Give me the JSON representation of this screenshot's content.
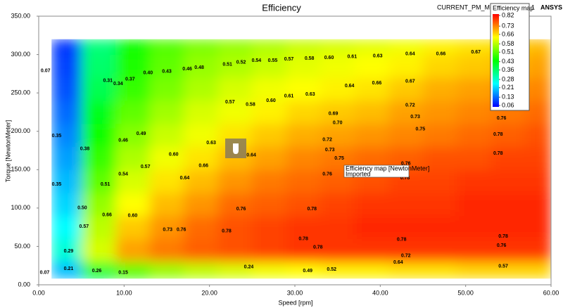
{
  "header": {
    "model": "CURRENT_PM_Moto",
    "index": "1",
    "brand": "ANSYS"
  },
  "tooltip": {
    "title": "Efficiency map [NewtonMeter]",
    "subtitle": "Imported"
  },
  "chart_data": {
    "type": "heatmap",
    "title": "Efficiency",
    "x_label": "Speed [rpm]",
    "y_label": "Torque [NewtonMeter]",
    "xlim": [
      0,
      60
    ],
    "ylim": [
      0,
      350
    ],
    "xticks": [
      {
        "value": 0,
        "label": "0.00"
      },
      {
        "value": 10,
        "label": "10.00"
      },
      {
        "value": 20,
        "label": "20.00"
      },
      {
        "value": 30,
        "label": "30.00"
      },
      {
        "value": 40,
        "label": "40.00"
      },
      {
        "value": 50,
        "label": "50.00"
      },
      {
        "value": 60,
        "label": "60.00"
      }
    ],
    "yticks": [
      {
        "value": 0,
        "label": "0.00"
      },
      {
        "value": 50,
        "label": "50.00"
      },
      {
        "value": 100,
        "label": "100.00"
      },
      {
        "value": 150,
        "label": "150.00"
      },
      {
        "value": 200,
        "label": "200.00"
      },
      {
        "value": 250,
        "label": "250.00"
      },
      {
        "value": 300,
        "label": "300.00"
      },
      {
        "value": 350,
        "label": "350.00"
      }
    ],
    "x_edges": [
      1.5,
      5,
      9,
      13,
      17,
      21,
      25,
      29,
      33,
      37,
      41,
      45,
      49,
      53,
      57,
      60
    ],
    "y_edges": [
      8,
      30,
      60,
      90,
      120,
      150,
      180,
      210,
      240,
      270,
      300,
      320
    ],
    "z": [
      [
        0.2,
        0.4,
        0.5,
        0.55,
        0.58,
        0.6,
        0.62,
        0.63,
        0.64,
        0.64,
        0.65,
        0.65,
        0.66,
        0.66,
        0.66
      ],
      [
        0.28,
        0.6,
        0.7,
        0.73,
        0.75,
        0.76,
        0.77,
        0.78,
        0.78,
        0.78,
        0.78,
        0.78,
        0.78,
        0.78,
        0.78
      ],
      [
        0.25,
        0.58,
        0.67,
        0.71,
        0.74,
        0.76,
        0.77,
        0.78,
        0.78,
        0.79,
        0.79,
        0.79,
        0.79,
        0.79,
        0.79
      ],
      [
        0.22,
        0.55,
        0.63,
        0.68,
        0.71,
        0.74,
        0.75,
        0.76,
        0.77,
        0.78,
        0.78,
        0.78,
        0.79,
        0.79,
        0.79
      ],
      [
        0.2,
        0.51,
        0.6,
        0.65,
        0.68,
        0.71,
        0.73,
        0.74,
        0.75,
        0.76,
        0.77,
        0.77,
        0.78,
        0.78,
        0.78
      ],
      [
        0.18,
        0.48,
        0.57,
        0.62,
        0.65,
        0.68,
        0.7,
        0.72,
        0.73,
        0.74,
        0.75,
        0.76,
        0.76,
        0.77,
        0.77
      ],
      [
        0.16,
        0.45,
        0.54,
        0.59,
        0.62,
        0.65,
        0.67,
        0.69,
        0.7,
        0.71,
        0.72,
        0.73,
        0.74,
        0.75,
        0.76
      ],
      [
        0.14,
        0.42,
        0.51,
        0.56,
        0.6,
        0.62,
        0.64,
        0.66,
        0.67,
        0.68,
        0.7,
        0.71,
        0.72,
        0.73,
        0.74
      ],
      [
        0.12,
        0.38,
        0.48,
        0.53,
        0.57,
        0.6,
        0.62,
        0.63,
        0.64,
        0.65,
        0.67,
        0.69,
        0.7,
        0.71,
        0.72
      ],
      [
        0.11,
        0.36,
        0.46,
        0.51,
        0.55,
        0.57,
        0.59,
        0.61,
        0.62,
        0.63,
        0.64,
        0.66,
        0.67,
        0.68,
        0.7
      ],
      [
        0.1,
        0.35,
        0.45,
        0.5,
        0.53,
        0.55,
        0.57,
        0.59,
        0.6,
        0.61,
        0.62,
        0.64,
        0.65,
        0.66,
        0.68
      ]
    ],
    "colormap": [
      "#0000ff",
      "#00ffff",
      "#00ff00",
      "#ffff00",
      "#ff0000"
    ],
    "zlim": [
      0.06,
      0.82
    ],
    "colorbar": {
      "title": "Efficiency map",
      "ticks": [
        0.82,
        0.73,
        0.66,
        0.58,
        0.51,
        0.43,
        0.36,
        0.28,
        0.21,
        0.13,
        0.06
      ]
    },
    "contour_labels": [
      {
        "x": 0.8,
        "y": 279,
        "label": "0.07"
      },
      {
        "x": 8.1,
        "y": 266,
        "label": "0.31"
      },
      {
        "x": 9.3,
        "y": 262,
        "label": "0.34"
      },
      {
        "x": 10.7,
        "y": 268,
        "label": "0.37"
      },
      {
        "x": 12.8,
        "y": 276,
        "label": "0.40"
      },
      {
        "x": 15,
        "y": 278,
        "label": "0.43"
      },
      {
        "x": 17.4,
        "y": 281,
        "label": "0.46"
      },
      {
        "x": 18.8,
        "y": 283,
        "label": "0.48"
      },
      {
        "x": 22.1,
        "y": 287,
        "label": "0.51"
      },
      {
        "x": 23.7,
        "y": 290,
        "label": "0.52"
      },
      {
        "x": 25.5,
        "y": 292,
        "label": "0.54"
      },
      {
        "x": 27.4,
        "y": 292,
        "label": "0.55"
      },
      {
        "x": 29.3,
        "y": 294,
        "label": "0.57"
      },
      {
        "x": 31.7,
        "y": 295,
        "label": "0.58"
      },
      {
        "x": 34,
        "y": 296,
        "label": "0.60"
      },
      {
        "x": 36.7,
        "y": 297,
        "label": "0.61"
      },
      {
        "x": 39.7,
        "y": 298,
        "label": "0.63"
      },
      {
        "x": 43.5,
        "y": 301,
        "label": "0.64"
      },
      {
        "x": 47.1,
        "y": 301,
        "label": "0.66"
      },
      {
        "x": 51.2,
        "y": 303,
        "label": "0.67"
      },
      {
        "x": 22.4,
        "y": 238,
        "label": "0.57"
      },
      {
        "x": 24.8,
        "y": 235,
        "label": "0.58"
      },
      {
        "x": 27.2,
        "y": 240,
        "label": "0.60"
      },
      {
        "x": 29.3,
        "y": 246,
        "label": "0.61"
      },
      {
        "x": 31.8,
        "y": 248,
        "label": "0.63"
      },
      {
        "x": 36.4,
        "y": 259,
        "label": "0.64"
      },
      {
        "x": 39.6,
        "y": 263,
        "label": "0.66"
      },
      {
        "x": 43.5,
        "y": 265,
        "label": "0.67"
      },
      {
        "x": 53.6,
        "y": 266,
        "label": "0.69"
      },
      {
        "x": 53.6,
        "y": 252,
        "label": "0.70"
      },
      {
        "x": 43.5,
        "y": 234,
        "label": "0.72"
      },
      {
        "x": 44.1,
        "y": 219,
        "label": "0.73"
      },
      {
        "x": 44.7,
        "y": 203,
        "label": "0.75"
      },
      {
        "x": 54.2,
        "y": 217,
        "label": "0.76"
      },
      {
        "x": 53.8,
        "y": 196,
        "label": "0.78"
      },
      {
        "x": 53.8,
        "y": 171,
        "label": "0.78"
      },
      {
        "x": 34.5,
        "y": 223,
        "label": "0.69"
      },
      {
        "x": 35,
        "y": 211,
        "label": "0.70"
      },
      {
        "x": 33.8,
        "y": 189,
        "label": "0.72"
      },
      {
        "x": 34.1,
        "y": 176,
        "label": "0.73"
      },
      {
        "x": 35.2,
        "y": 165,
        "label": "0.75"
      },
      {
        "x": 33.8,
        "y": 144,
        "label": "0.76"
      },
      {
        "x": 43,
        "y": 158,
        "label": "0.76"
      },
      {
        "x": 42.9,
        "y": 139,
        "label": "0.78"
      },
      {
        "x": 32,
        "y": 99,
        "label": "0.78"
      },
      {
        "x": 23.7,
        "y": 99,
        "label": "0.76"
      },
      {
        "x": 15.1,
        "y": 72,
        "label": "0.73"
      },
      {
        "x": 16.7,
        "y": 72,
        "label": "0.76"
      },
      {
        "x": 22,
        "y": 70,
        "label": "0.78"
      },
      {
        "x": 31,
        "y": 60,
        "label": "0.78"
      },
      {
        "x": 32.7,
        "y": 49,
        "label": "0.78"
      },
      {
        "x": 42.5,
        "y": 59,
        "label": "0.78"
      },
      {
        "x": 54.4,
        "y": 63,
        "label": "0.78"
      },
      {
        "x": 54.2,
        "y": 51,
        "label": "0.76"
      },
      {
        "x": 43,
        "y": 38,
        "label": "0.72"
      },
      {
        "x": 42.1,
        "y": 29,
        "label": "0.64"
      },
      {
        "x": 54.4,
        "y": 24,
        "label": "0.57"
      },
      {
        "x": 34.3,
        "y": 20,
        "label": "0.52"
      },
      {
        "x": 31.5,
        "y": 18,
        "label": "0.49"
      },
      {
        "x": 24.6,
        "y": 23,
        "label": "0.24"
      },
      {
        "x": 8,
        "y": 91,
        "label": "0.66"
      },
      {
        "x": 11,
        "y": 90,
        "label": "0.60"
      },
      {
        "x": 5.3,
        "y": 76,
        "label": "0.57"
      },
      {
        "x": 5.1,
        "y": 100,
        "label": "0.50"
      },
      {
        "x": 17.1,
        "y": 139,
        "label": "0.64"
      },
      {
        "x": 19.3,
        "y": 155,
        "label": "0.66"
      },
      {
        "x": 15.8,
        "y": 170,
        "label": "0.60"
      },
      {
        "x": 24.9,
        "y": 169,
        "label": "0.64"
      },
      {
        "x": 20.2,
        "y": 185,
        "label": "0.63"
      },
      {
        "x": 12.5,
        "y": 154,
        "label": "0.57"
      },
      {
        "x": 9.9,
        "y": 144,
        "label": "0.54"
      },
      {
        "x": 7.8,
        "y": 131,
        "label": "0.51"
      },
      {
        "x": 12,
        "y": 197,
        "label": "0.49"
      },
      {
        "x": 9.9,
        "y": 188,
        "label": "0.46"
      },
      {
        "x": 5.4,
        "y": 177,
        "label": "0.38"
      },
      {
        "x": 2.1,
        "y": 131,
        "label": "0.35"
      },
      {
        "x": 2.1,
        "y": 194,
        "label": "0.35"
      },
      {
        "x": 3.5,
        "y": 44,
        "label": "0.29"
      },
      {
        "x": 3.5,
        "y": 21,
        "label": "0.21"
      },
      {
        "x": 6.8,
        "y": 18,
        "label": "0.26"
      },
      {
        "x": 9.9,
        "y": 16,
        "label": "0.15"
      },
      {
        "x": 0.7,
        "y": 16,
        "label": "0.07"
      }
    ]
  }
}
